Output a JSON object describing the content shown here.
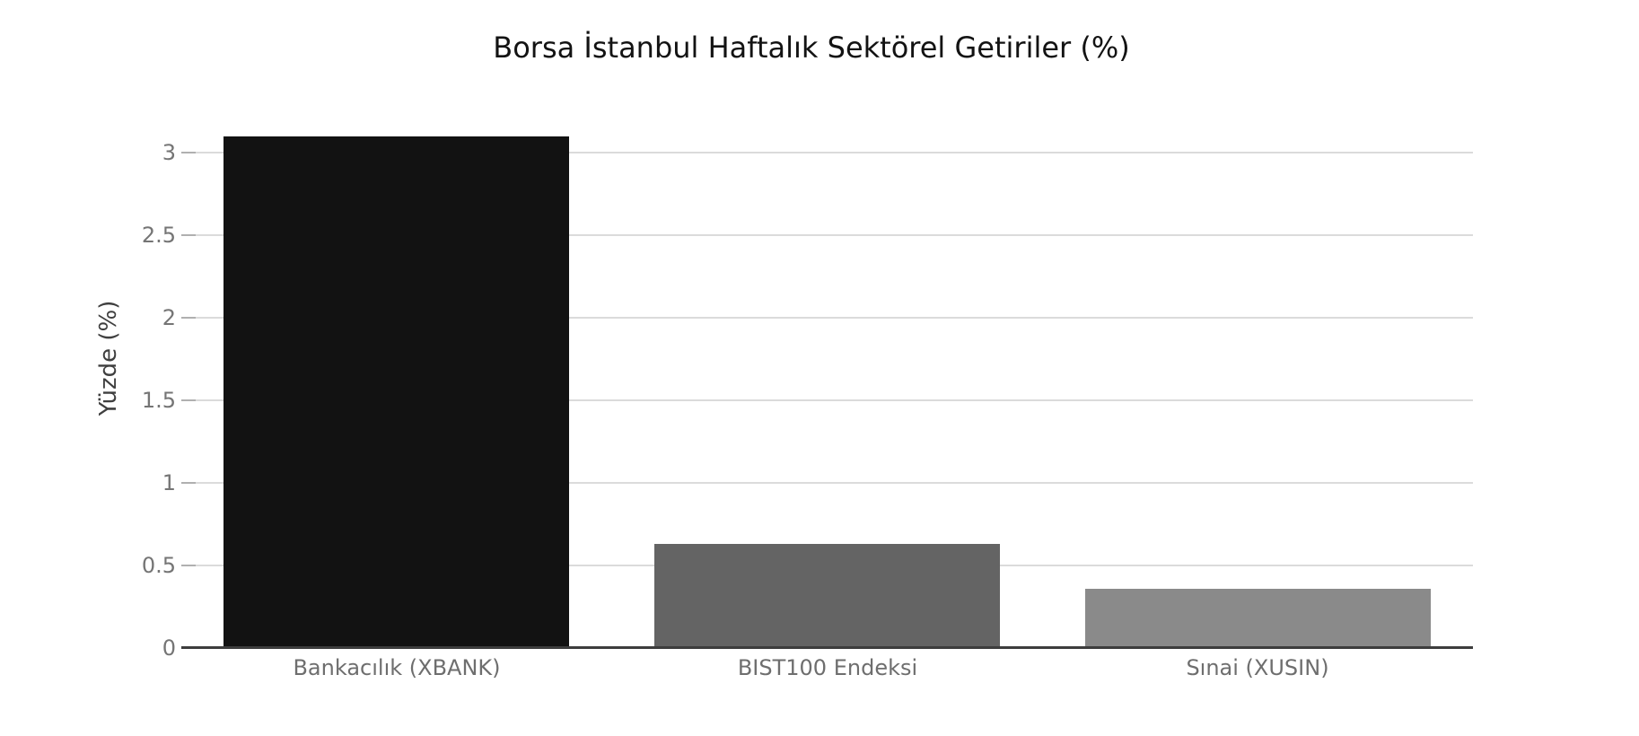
{
  "chart_data": {
    "type": "bar",
    "title": "Borsa İstanbul Haftalık Sektörel Getiriler (%)",
    "xlabel": "",
    "ylabel": "Yüzde (%)",
    "categories": [
      "Bankacılık (XBANK)",
      "BIST100 Endeksi",
      "Sınai (XUSIN)"
    ],
    "values": [
      3.1,
      0.63,
      0.36
    ],
    "bar_colors": [
      "#121212",
      "#646464",
      "#8a8a8a"
    ],
    "yticks": [
      0,
      0.5,
      1,
      1.5,
      2,
      2.5,
      3
    ],
    "ytick_labels": [
      "0",
      "0.5",
      "1",
      "1.5",
      "2",
      "2.5",
      "3"
    ],
    "ylim": [
      0,
      3.25
    ],
    "grid": true,
    "legend": false,
    "colors": {
      "background": "#ffffff",
      "title": "#131313",
      "axis_title": "#3f3f3f",
      "y_tick_label": "#757575",
      "x_tick_label": "#6e6e6e",
      "gridline": "#dbdbdb",
      "tick_mark": "#b0b0b0",
      "axis_line": "#3d3d3d"
    }
  }
}
